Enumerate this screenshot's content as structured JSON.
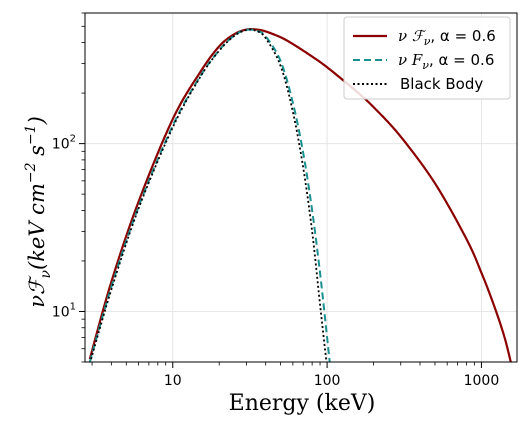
{
  "chart_data": {
    "type": "line",
    "xlabel": "Energy (keV)",
    "ylabel": "νℱ",
    "ylabel_sub": "ν",
    "ylabel_units_pre": "(keV cm",
    "ylabel_units_exp1": "−2",
    "ylabel_units_mid": " s",
    "ylabel_units_exp2": "−1",
    "ylabel_units_post": ")",
    "xscale": "log",
    "yscale": "log",
    "xlim": [
      2.7,
      1700
    ],
    "ylim": [
      5,
      600
    ],
    "grid": true,
    "legend_position": "top-right",
    "x_ticks": [
      {
        "value": 10,
        "label": "10"
      },
      {
        "value": 100,
        "label": "100"
      },
      {
        "value": 1000,
        "label": "1000"
      }
    ],
    "y_ticks": [
      {
        "value": 10,
        "base": "10",
        "exp": "1"
      },
      {
        "value": 100,
        "base": "10",
        "exp": "2"
      }
    ],
    "series": [
      {
        "name": "νℱ, α = 0.6",
        "legend_main": "ν ℱ",
        "legend_sub": "ν",
        "legend_rest": ", α = 0.6",
        "color": "#8b0000",
        "style": "solid",
        "x": [
          2.9,
          4,
          6,
          10,
          15,
          20,
          25,
          30,
          35,
          40,
          50,
          60,
          80,
          100,
          150,
          200,
          300,
          500,
          800,
          1000,
          1200,
          1400,
          1550
        ],
        "y": [
          5.2,
          15,
          45,
          140,
          265,
          380,
          448,
          478,
          478,
          466,
          430,
          392,
          330,
          285,
          210,
          165,
          110,
          58,
          27,
          17,
          11,
          7.2,
          5.0
        ]
      },
      {
        "name": "νFν, α = 0.6",
        "legend_main": "ν F",
        "legend_sub": "ν",
        "legend_rest": ", α = 0.6",
        "color": "#1a9090",
        "style": "dashed",
        "x": [
          2.9,
          4,
          6,
          10,
          15,
          20,
          25,
          30,
          35,
          40,
          50,
          60,
          70,
          80,
          90,
          100,
          104
        ],
        "y": [
          5.0,
          14,
          42,
          128,
          250,
          360,
          440,
          476,
          470,
          435,
          310,
          175,
          88,
          40,
          17,
          7.0,
          5.0
        ]
      },
      {
        "name": "Black Body",
        "legend_main": "Black Body",
        "legend_sub": "",
        "legend_rest": "",
        "color": "#000000",
        "style": "dotted",
        "x": [
          2.9,
          4,
          6,
          10,
          15,
          20,
          25,
          30,
          35,
          40,
          50,
          60,
          70,
          80,
          90,
          99
        ],
        "y": [
          4.9,
          13.5,
          41,
          125,
          248,
          358,
          438,
          475,
          468,
          425,
          290,
          155,
          72,
          30,
          11,
          5.0
        ]
      }
    ]
  }
}
